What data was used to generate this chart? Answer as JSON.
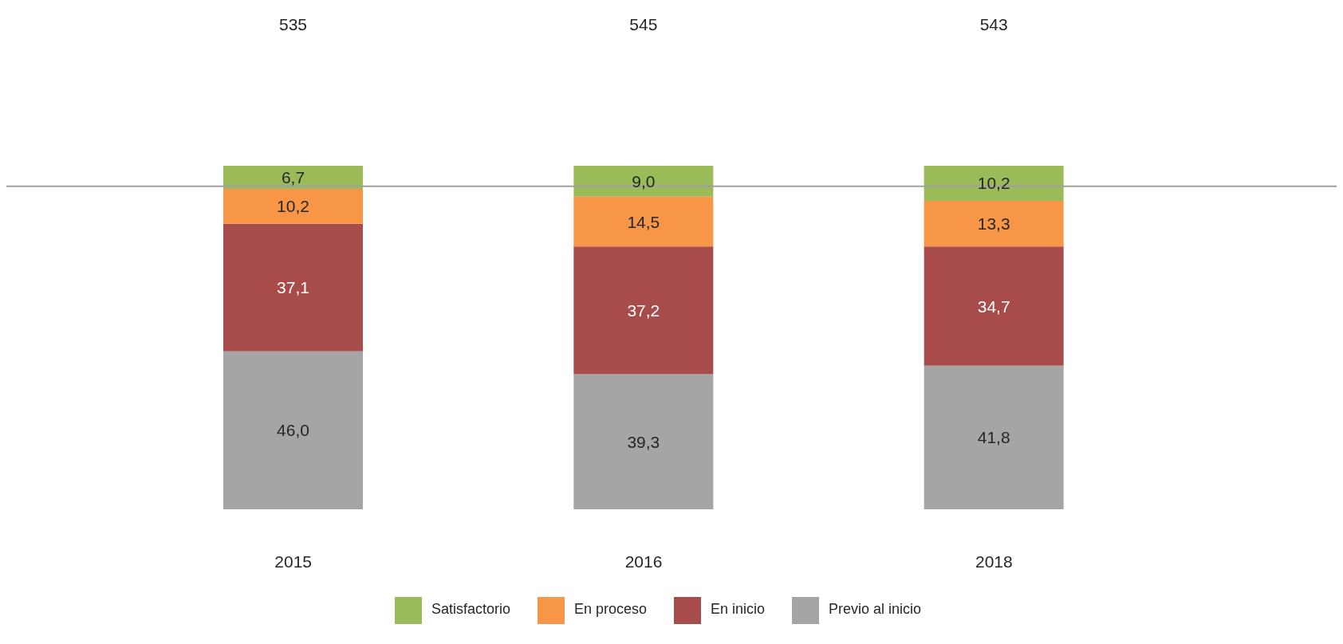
{
  "chart_data": {
    "type": "bar",
    "stacked": true,
    "categories": [
      "2015",
      "2016",
      "2018"
    ],
    "series": [
      {
        "name": "Previo al inicio",
        "color": "#a5a5a5",
        "values": [
          46.0,
          39.3,
          41.8
        ],
        "value_labels": [
          "46,0",
          "39,3",
          "41,8"
        ]
      },
      {
        "name": "En inicio",
        "color": "#a84b4b",
        "values": [
          37.1,
          37.2,
          34.7
        ],
        "value_labels": [
          "37,1",
          "37,2",
          "34,7"
        ]
      },
      {
        "name": "En proceso",
        "color": "#f79646",
        "values": [
          10.2,
          14.5,
          13.3
        ],
        "value_labels": [
          "10,2",
          "14,5",
          "13,3"
        ]
      },
      {
        "name": "Satisfactorio",
        "color": "#9bbb59",
        "values": [
          6.7,
          9.0,
          10.2
        ],
        "value_labels": [
          "6,7",
          "9,0",
          "10,2"
        ]
      }
    ],
    "tick_labels": "x",
    "annotations": [
      "535",
      "545",
      "543"
    ],
    "ref_lines": [
      {
        "axis": "y",
        "value": 94,
        "color": "#a0a0a0"
      }
    ],
    "legend": "bottom"
  }
}
